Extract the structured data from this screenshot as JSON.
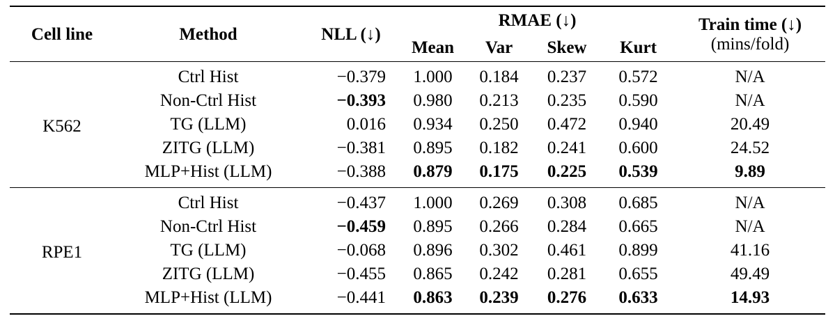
{
  "table": {
    "header": {
      "cell_line": "Cell line",
      "method": "Method",
      "nll": "NLL (↓)",
      "rmae": "RMAE (↓)",
      "rmae_sub": [
        "Mean",
        "Var",
        "Skew",
        "Kurt"
      ],
      "train_time": "Train time (↓)",
      "train_time_unit": "(mins/fold)"
    },
    "groups": [
      {
        "cell_line": "K562",
        "rows": [
          {
            "method": "Ctrl Hist",
            "values": [
              "−0.379",
              "1.000",
              "0.184",
              "0.237",
              "0.572",
              "N/A"
            ],
            "bold": [
              false,
              false,
              false,
              false,
              false,
              false
            ]
          },
          {
            "method": "Non-Ctrl Hist",
            "values": [
              "−0.393",
              "0.980",
              "0.213",
              "0.235",
              "0.590",
              "N/A"
            ],
            "bold": [
              true,
              false,
              false,
              false,
              false,
              false
            ]
          },
          {
            "method": "TG (LLM)",
            "values": [
              "0.016",
              "0.934",
              "0.250",
              "0.472",
              "0.940",
              "20.49"
            ],
            "bold": [
              false,
              false,
              false,
              false,
              false,
              false
            ]
          },
          {
            "method": "ZITG (LLM)",
            "values": [
              "−0.381",
              "0.895",
              "0.182",
              "0.241",
              "0.600",
              "24.52"
            ],
            "bold": [
              false,
              false,
              false,
              false,
              false,
              false
            ]
          },
          {
            "method": "MLP+Hist (LLM)",
            "values": [
              "−0.388",
              "0.879",
              "0.175",
              "0.225",
              "0.539",
              "9.89"
            ],
            "bold": [
              false,
              true,
              true,
              true,
              true,
              true
            ]
          }
        ]
      },
      {
        "cell_line": "RPE1",
        "rows": [
          {
            "method": "Ctrl Hist",
            "values": [
              "−0.437",
              "1.000",
              "0.269",
              "0.308",
              "0.685",
              "N/A"
            ],
            "bold": [
              false,
              false,
              false,
              false,
              false,
              false
            ]
          },
          {
            "method": "Non-Ctrl Hist",
            "values": [
              "−0.459",
              "0.895",
              "0.266",
              "0.284",
              "0.665",
              "N/A"
            ],
            "bold": [
              true,
              false,
              false,
              false,
              false,
              false
            ]
          },
          {
            "method": "TG (LLM)",
            "values": [
              "−0.068",
              "0.896",
              "0.302",
              "0.461",
              "0.899",
              "41.16"
            ],
            "bold": [
              false,
              false,
              false,
              false,
              false,
              false
            ]
          },
          {
            "method": "ZITG (LLM)",
            "values": [
              "−0.455",
              "0.865",
              "0.242",
              "0.281",
              "0.655",
              "49.49"
            ],
            "bold": [
              false,
              false,
              false,
              false,
              false,
              false
            ]
          },
          {
            "method": "MLP+Hist (LLM)",
            "values": [
              "−0.441",
              "0.863",
              "0.239",
              "0.276",
              "0.633",
              "14.93"
            ],
            "bold": [
              false,
              true,
              true,
              true,
              true,
              true
            ]
          }
        ]
      }
    ]
  }
}
